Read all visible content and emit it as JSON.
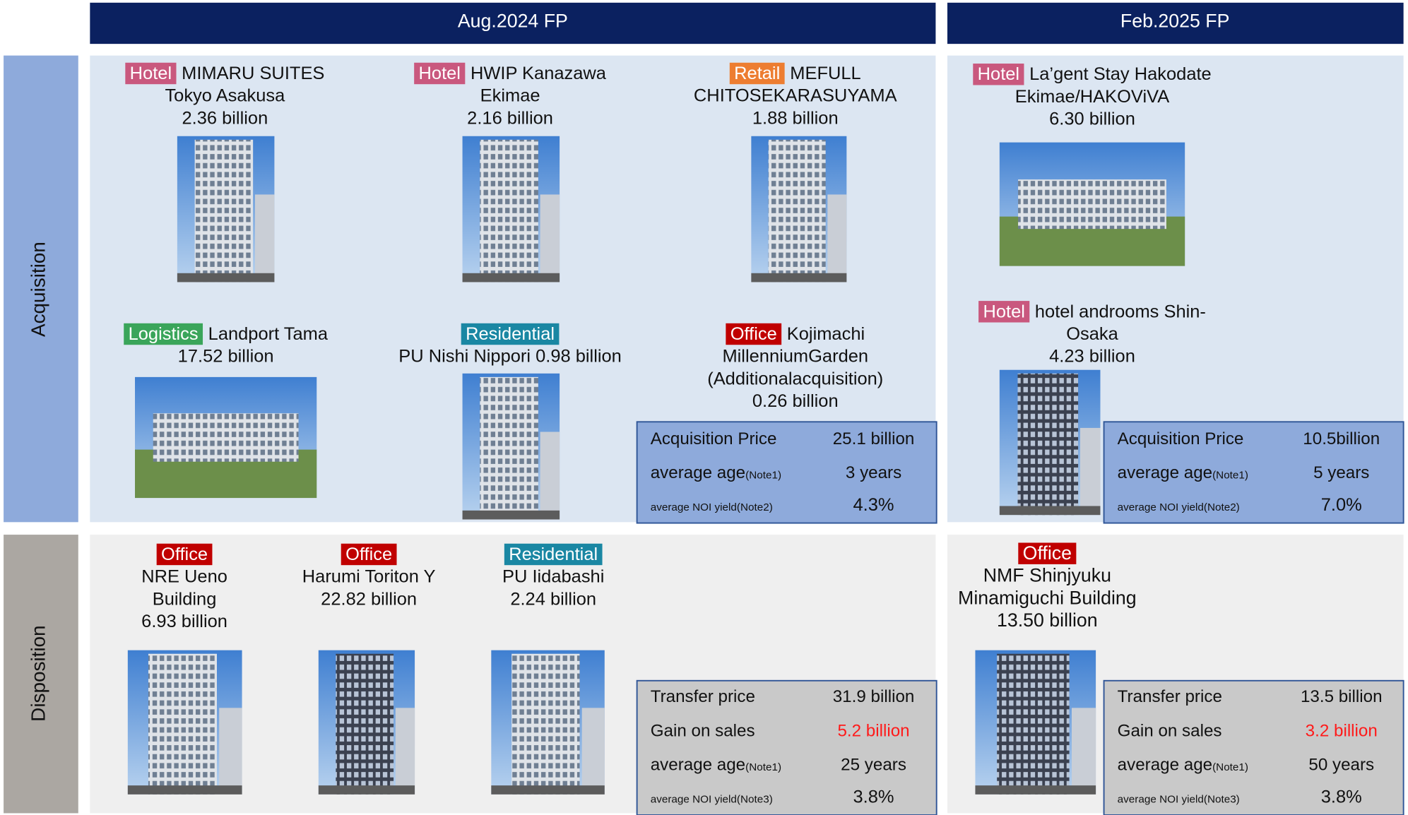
{
  "header": {
    "aug": "Aug.2024 FP",
    "feb": "Feb.2025 FP"
  },
  "rows": {
    "acquisition": "Acquisition",
    "disposition": "Disposition"
  },
  "aug_acquisitions": [
    {
      "tag": "Hotel",
      "tag_color": "#c9587e",
      "title": "MIMARU SUITES",
      "lines": [
        "Tokyo Asakusa",
        "2.36 billion"
      ]
    },
    {
      "tag": "Hotel",
      "tag_color": "#c9587e",
      "title": "HWIP Kanazawa",
      "lines": [
        "Ekimae",
        "2.16 billion"
      ]
    },
    {
      "tag": "Retail",
      "tag_color": "#ed7d31",
      "title": "MEFULL",
      "lines": [
        "CHITOSEKARASUYAMA",
        "1.88 billion"
      ]
    },
    {
      "tag": "Logistics",
      "tag_color": "#3aa55a",
      "title": "Landport Tama",
      "lines": [
        "17.52 billion"
      ]
    },
    {
      "tag": "Residential",
      "tag_color": "#1a87a3",
      "lines": [
        "PU Nishi Nippori 0.98 billion"
      ]
    },
    {
      "tag": "Office",
      "tag_color": "#c00000",
      "title": "Kojimachi",
      "lines": [
        "MillenniumGarden",
        "(Additionalacquisition)",
        "0.26 billion"
      ]
    }
  ],
  "aug_acquisition_summary": [
    {
      "label": "Acquisition Price",
      "value": "25.1 billion"
    },
    {
      "label": "average age",
      "note": "(Note1)",
      "value": "3 years"
    },
    {
      "label": "average NOI yield",
      "note": "(Note2)",
      "value": "4.3%"
    }
  ],
  "feb_acquisitions": [
    {
      "tag": "Hotel",
      "tag_color": "#c9587e",
      "title": "La’gent Stay Hakodate",
      "lines": [
        "Ekimae/HAKOViVA",
        "6.30 billion"
      ]
    },
    {
      "tag": "Hotel",
      "tag_color": "#c9587e",
      "title": "hotel androoms Shin-",
      "lines": [
        "Osaka",
        "4.23 billion"
      ]
    }
  ],
  "feb_acquisition_summary": [
    {
      "label": "Acquisition Price",
      "value": "10.5billion"
    },
    {
      "label": "average age",
      "note": "(Note1)",
      "value": "5 years"
    },
    {
      "label": "average NOI yield",
      "note": "(Note2)",
      "value": "7.0%"
    }
  ],
  "aug_dispositions": [
    {
      "tag": "Office",
      "tag_color": "#c00000",
      "lines": [
        "NRE Ueno",
        "Building",
        "6.93 billion"
      ]
    },
    {
      "tag": "Office",
      "tag_color": "#c00000",
      "lines": [
        "Harumi Toriton Y",
        "22.82 billion"
      ]
    },
    {
      "tag": "Residential",
      "tag_color": "#1a87a3",
      "lines": [
        "PU Iidabashi",
        "2.24 billion"
      ]
    }
  ],
  "aug_disposition_summary": [
    {
      "label": "Transfer price",
      "value": "31.9 billion"
    },
    {
      "label": "Gain on sales",
      "value": "5.2 billion",
      "value_color": "#ff1a1a"
    },
    {
      "label": "average age",
      "note": "(Note1)",
      "value": "25 years"
    },
    {
      "label": "average NOI yield",
      "note": "(Note3)",
      "value": "3.8%"
    }
  ],
  "feb_dispositions": [
    {
      "tag": "Office",
      "tag_color": "#c00000",
      "lines": [
        "NMF Shinjyuku",
        "Minamiguchi Building",
        "13.50 billion"
      ]
    }
  ],
  "feb_disposition_summary": [
    {
      "label": "Transfer price",
      "value": "13.5 billion"
    },
    {
      "label": "Gain on sales",
      "value": "3.2 billion",
      "value_color": "#ff1a1a"
    },
    {
      "label": "average age",
      "note": "(Note1)",
      "value": "50 years"
    },
    {
      "label": "average NOI yield",
      "note": "(Note3)",
      "value": "3.8%"
    }
  ]
}
